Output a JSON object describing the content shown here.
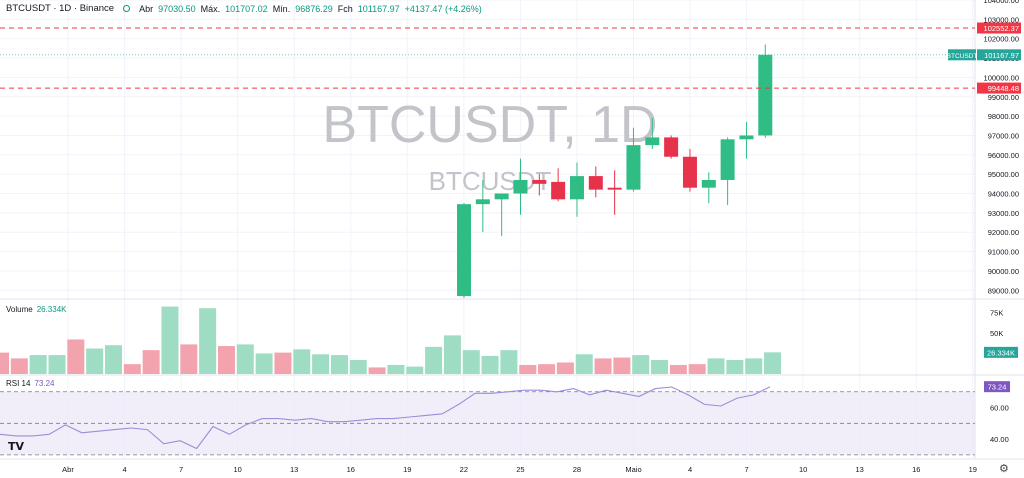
{
  "header": {
    "symbol": "BTCUSDT · 1D · Binance",
    "open_label": "Abr",
    "open_value": "97030.50",
    "high_label": "Máx.",
    "high_value": "101707.02",
    "low_label": "Mín.",
    "low_value": "96876.29",
    "close_label": "Fch",
    "close_value": "101167.97",
    "change_value": "+4137.47 (+4.26%)"
  },
  "watermark": {
    "big": "BTCUSDT, 1D",
    "small": "BTCUSDT"
  },
  "volume_pane": {
    "label": "Volume",
    "value": "26.334K"
  },
  "rsi_pane": {
    "label": "RSI 14",
    "value": "73.24"
  },
  "colors": {
    "up": "#26a69a",
    "up_candle": "#2fbd85",
    "down": "#e7324b",
    "up_volume": "#9fdcc4",
    "down_volume": "#f3a3ad",
    "rsi": "#9d8dd9",
    "alert": "#f23645",
    "rsi_band": "#ede7f6"
  },
  "chart_data": {
    "type": "candlestick",
    "price_axis": {
      "ticks": [
        89000,
        90000,
        91000,
        92000,
        93000,
        94000,
        95000,
        96000,
        97000,
        98000,
        99000,
        100000,
        101000,
        102000,
        103000,
        104000
      ],
      "range": [
        88600,
        104000
      ]
    },
    "price_lines": [
      {
        "price": 102552.37,
        "label": "102552.37",
        "style": "dashed"
      },
      {
        "price": 99448.48,
        "label": "99448.48",
        "style": "dashed"
      }
    ],
    "last_price": {
      "price": 101167.97,
      "label": "BTCUSDT",
      "value": "101167.97"
    },
    "x_axis": {
      "labels": [
        "Abr",
        "4",
        "7",
        "10",
        "13",
        "16",
        "19",
        "22",
        "25",
        "28",
        "Maio",
        "4",
        "7",
        "10",
        "13",
        "16",
        "19"
      ]
    },
    "candles": [
      {
        "date": "2025-04-22",
        "open": 88700,
        "high": 93500,
        "low": 88600,
        "close": 93450
      },
      {
        "date": "2025-04-23",
        "open": 93450,
        "high": 94700,
        "low": 92000,
        "close": 93700
      },
      {
        "date": "2025-04-24",
        "open": 93700,
        "high": 94000,
        "low": 91800,
        "close": 94000
      },
      {
        "date": "2025-04-25",
        "open": 94000,
        "high": 95800,
        "low": 92900,
        "close": 94700
      },
      {
        "date": "2025-04-26",
        "open": 94700,
        "high": 95000,
        "low": 93900,
        "close": 94500
      },
      {
        "date": "2025-04-27",
        "open": 94600,
        "high": 95300,
        "low": 93600,
        "close": 93700
      },
      {
        "date": "2025-04-28",
        "open": 93700,
        "high": 95600,
        "low": 92800,
        "close": 94900
      },
      {
        "date": "2025-04-29",
        "open": 94900,
        "high": 95400,
        "low": 93800,
        "close": 94200
      },
      {
        "date": "2025-04-30",
        "open": 94300,
        "high": 95200,
        "low": 92900,
        "close": 94200
      },
      {
        "date": "2025-05-01",
        "open": 94200,
        "high": 97400,
        "low": 94100,
        "close": 96500
      },
      {
        "date": "2025-05-02",
        "open": 96500,
        "high": 97900,
        "low": 96300,
        "close": 96900
      },
      {
        "date": "2025-05-03",
        "open": 96900,
        "high": 97000,
        "low": 95800,
        "close": 95900
      },
      {
        "date": "2025-05-04",
        "open": 95900,
        "high": 96300,
        "low": 94100,
        "close": 94300
      },
      {
        "date": "2025-05-05",
        "open": 94300,
        "high": 95100,
        "low": 93500,
        "close": 94700
      },
      {
        "date": "2025-05-06",
        "open": 94700,
        "high": 96900,
        "low": 93400,
        "close": 96800
      },
      {
        "date": "2025-05-07",
        "open": 96800,
        "high": 97700,
        "low": 95800,
        "close": 97000
      },
      {
        "date": "2025-05-08",
        "open": 97000,
        "high": 101707.02,
        "low": 96876.29,
        "close": 101167.97
      }
    ],
    "volume": {
      "ticks": [
        "75K",
        "50K"
      ],
      "range": [
        0,
        90000
      ],
      "values": [
        {
          "value": 26000,
          "dir": "down"
        },
        {
          "value": 19000,
          "dir": "down"
        },
        {
          "value": 23000,
          "dir": "up"
        },
        {
          "value": 23000,
          "dir": "up"
        },
        {
          "value": 42000,
          "dir": "down"
        },
        {
          "value": 31000,
          "dir": "up"
        },
        {
          "value": 35000,
          "dir": "up"
        },
        {
          "value": 12000,
          "dir": "down"
        },
        {
          "value": 29000,
          "dir": "down"
        },
        {
          "value": 82000,
          "dir": "up"
        },
        {
          "value": 36000,
          "dir": "down"
        },
        {
          "value": 80000,
          "dir": "up"
        },
        {
          "value": 34000,
          "dir": "down"
        },
        {
          "value": 36000,
          "dir": "up"
        },
        {
          "value": 25000,
          "dir": "up"
        },
        {
          "value": 26000,
          "dir": "down"
        },
        {
          "value": 30000,
          "dir": "up"
        },
        {
          "value": 24000,
          "dir": "up"
        },
        {
          "value": 23000,
          "dir": "up"
        },
        {
          "value": 17000,
          "dir": "up"
        },
        {
          "value": 8000,
          "dir": "down"
        },
        {
          "value": 11000,
          "dir": "up"
        },
        {
          "value": 9000,
          "dir": "up"
        },
        {
          "value": 33000,
          "dir": "up"
        },
        {
          "value": 47000,
          "dir": "up"
        },
        {
          "value": 29000,
          "dir": "up"
        },
        {
          "value": 22000,
          "dir": "up"
        },
        {
          "value": 29000,
          "dir": "up"
        },
        {
          "value": 11000,
          "dir": "down"
        },
        {
          "value": 12000,
          "dir": "down"
        },
        {
          "value": 14000,
          "dir": "down"
        },
        {
          "value": 24000,
          "dir": "up"
        },
        {
          "value": 19000,
          "dir": "down"
        },
        {
          "value": 20000,
          "dir": "down"
        },
        {
          "value": 23000,
          "dir": "up"
        },
        {
          "value": 17000,
          "dir": "up"
        },
        {
          "value": 11000,
          "dir": "down"
        },
        {
          "value": 12000,
          "dir": "down"
        },
        {
          "value": 19000,
          "dir": "up"
        },
        {
          "value": 17000,
          "dir": "up"
        },
        {
          "value": 19000,
          "dir": "up"
        },
        {
          "value": 26334,
          "dir": "up"
        }
      ]
    },
    "rsi": {
      "ticks": [
        60,
        40
      ],
      "band": [
        30,
        70
      ],
      "range": [
        28,
        80
      ],
      "values": [
        43,
        42,
        42,
        43,
        49,
        44,
        45,
        46,
        47,
        46,
        37,
        39,
        34,
        48,
        43,
        49,
        53,
        53,
        52,
        53,
        51,
        51,
        52,
        53,
        53,
        54,
        55,
        56,
        62,
        69,
        69,
        70,
        71,
        71,
        70,
        72,
        68,
        71,
        69,
        67,
        72,
        73,
        68,
        62,
        61,
        66,
        68,
        73.24
      ]
    }
  }
}
